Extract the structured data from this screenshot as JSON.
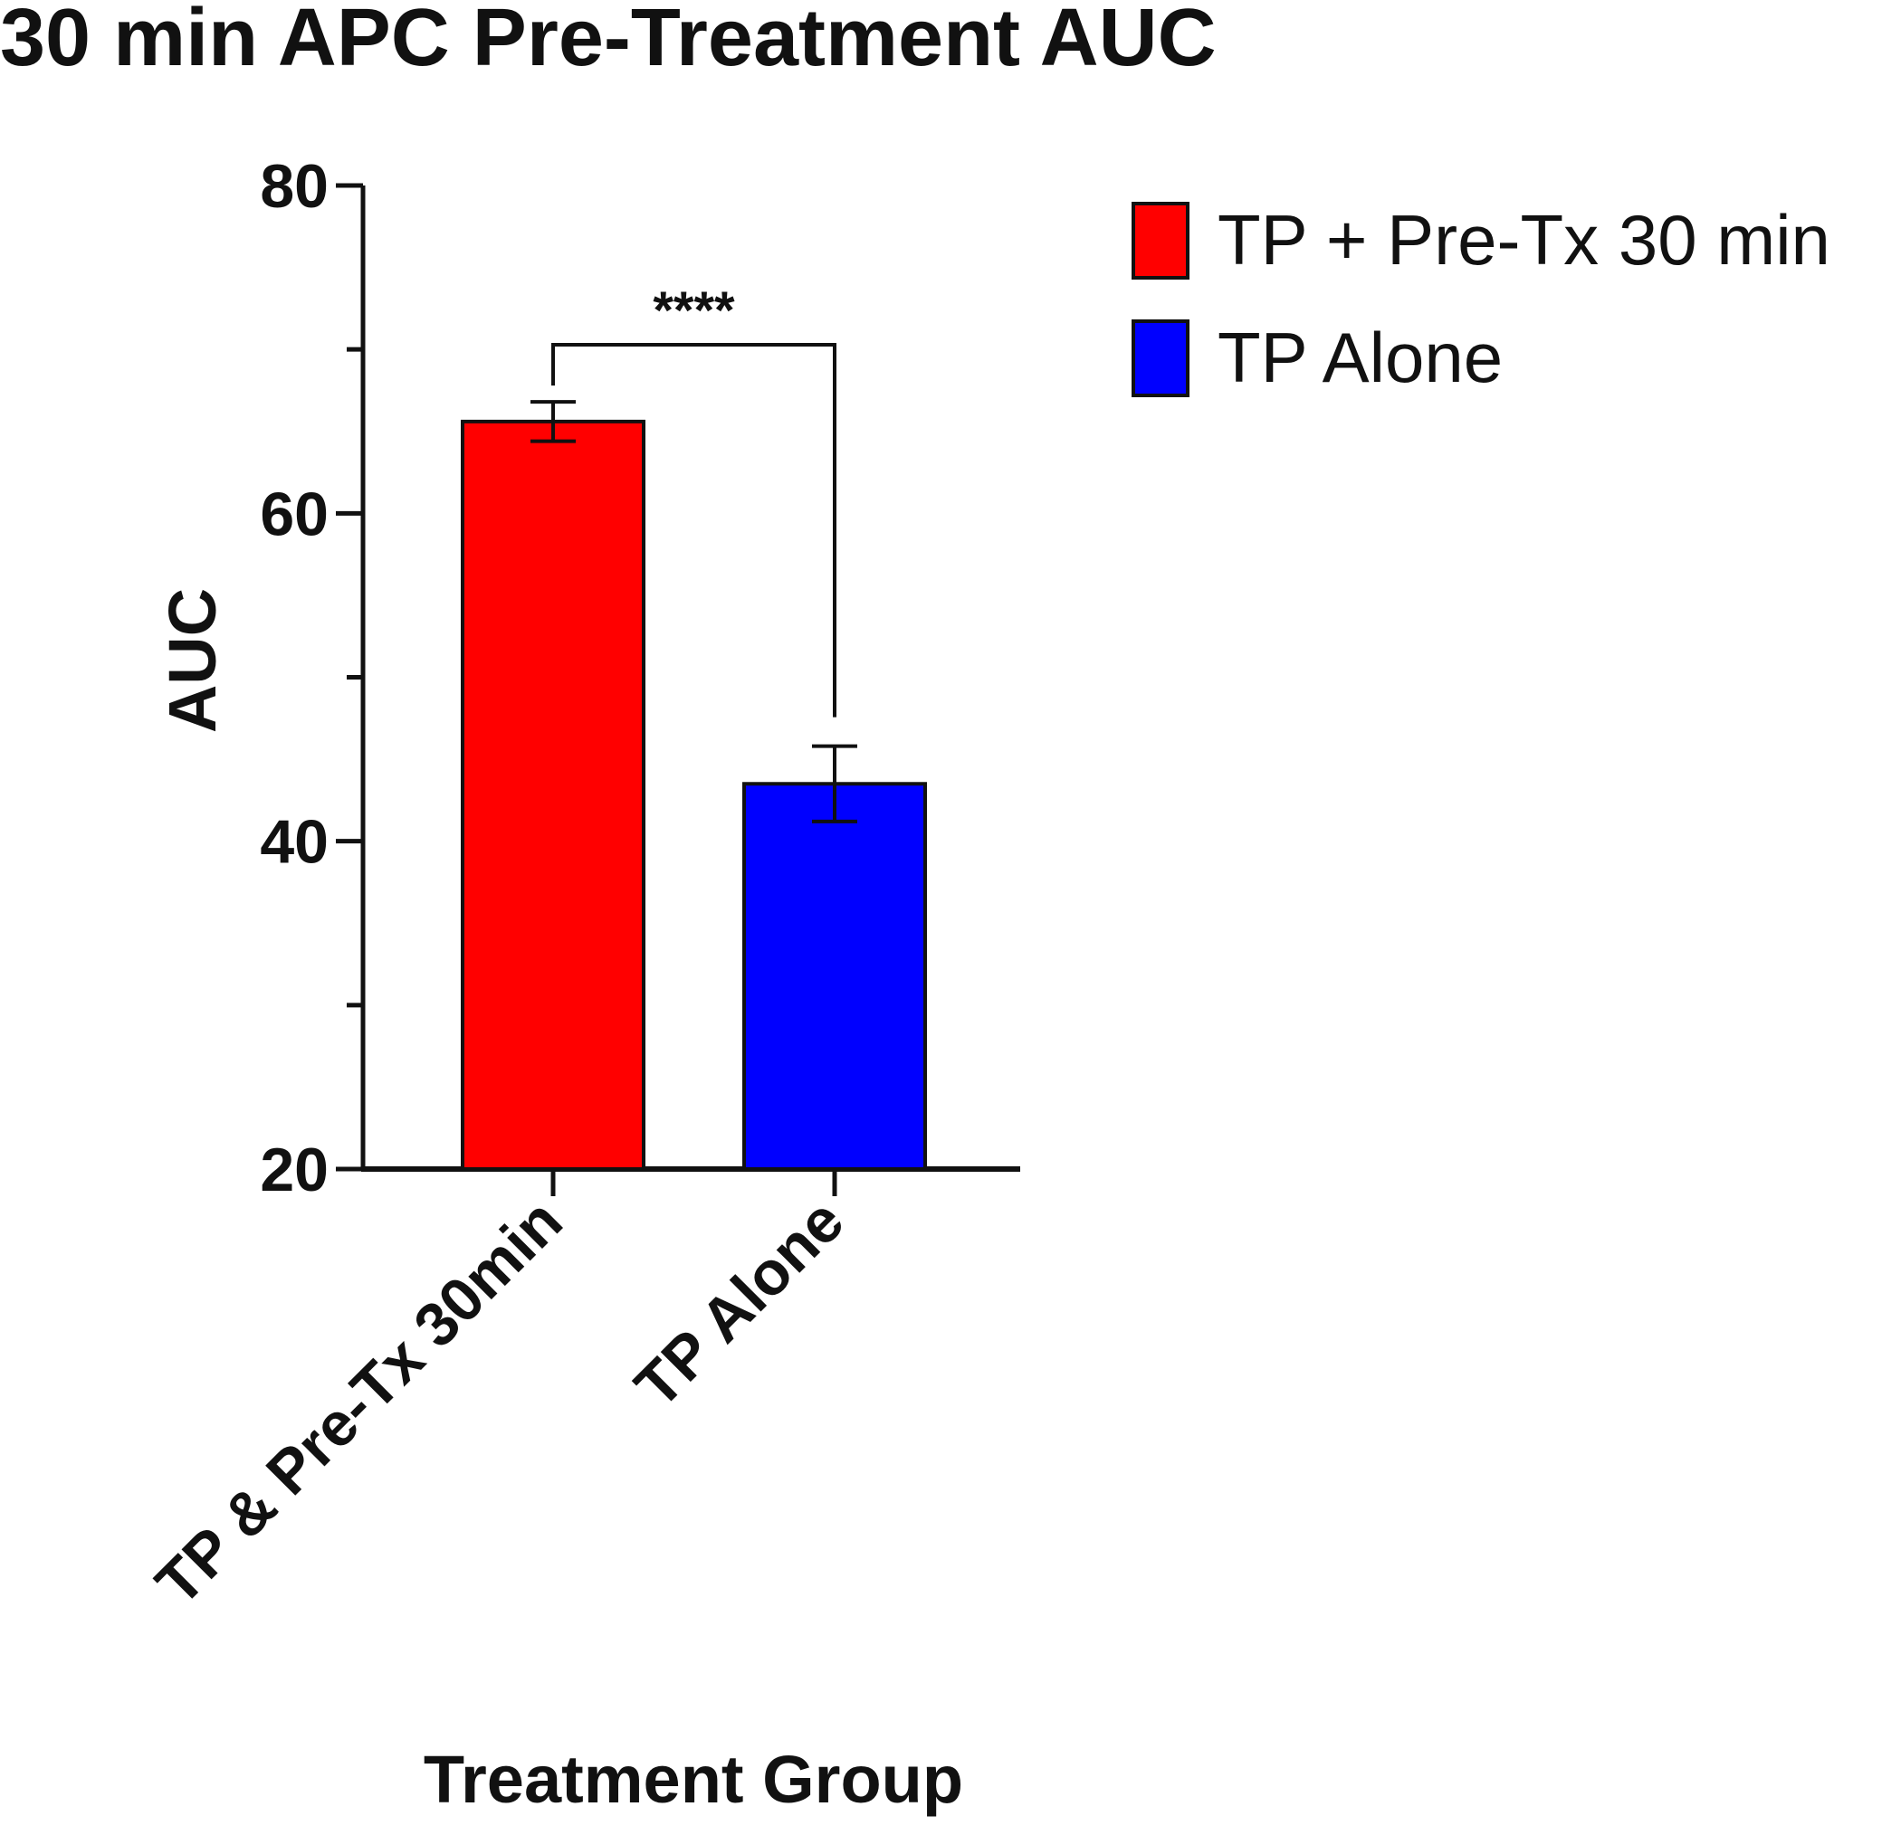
{
  "chart_data": {
    "type": "bar",
    "title": "30 min APC Pre-Treatment AUC",
    "xlabel": "Treatment Group",
    "ylabel": "AUC",
    "ylim": [
      20,
      80
    ],
    "yticks": [
      20,
      40,
      60,
      80
    ],
    "categories": [
      "TP & Pre-Tx 30min",
      "TP Alone"
    ],
    "values": [
      65.6,
      43.5
    ],
    "error": [
      1.2,
      2.3
    ],
    "colors": [
      "#ff0000",
      "#0000ff"
    ],
    "legend": {
      "position": "top-right",
      "entries": [
        {
          "label": "TP + Pre-Tx 30 min",
          "color": "#ff0000"
        },
        {
          "label": "TP Alone",
          "color": "#0000ff"
        }
      ]
    },
    "significance": {
      "label": "****",
      "between": [
        0,
        1
      ]
    },
    "grid": false
  }
}
